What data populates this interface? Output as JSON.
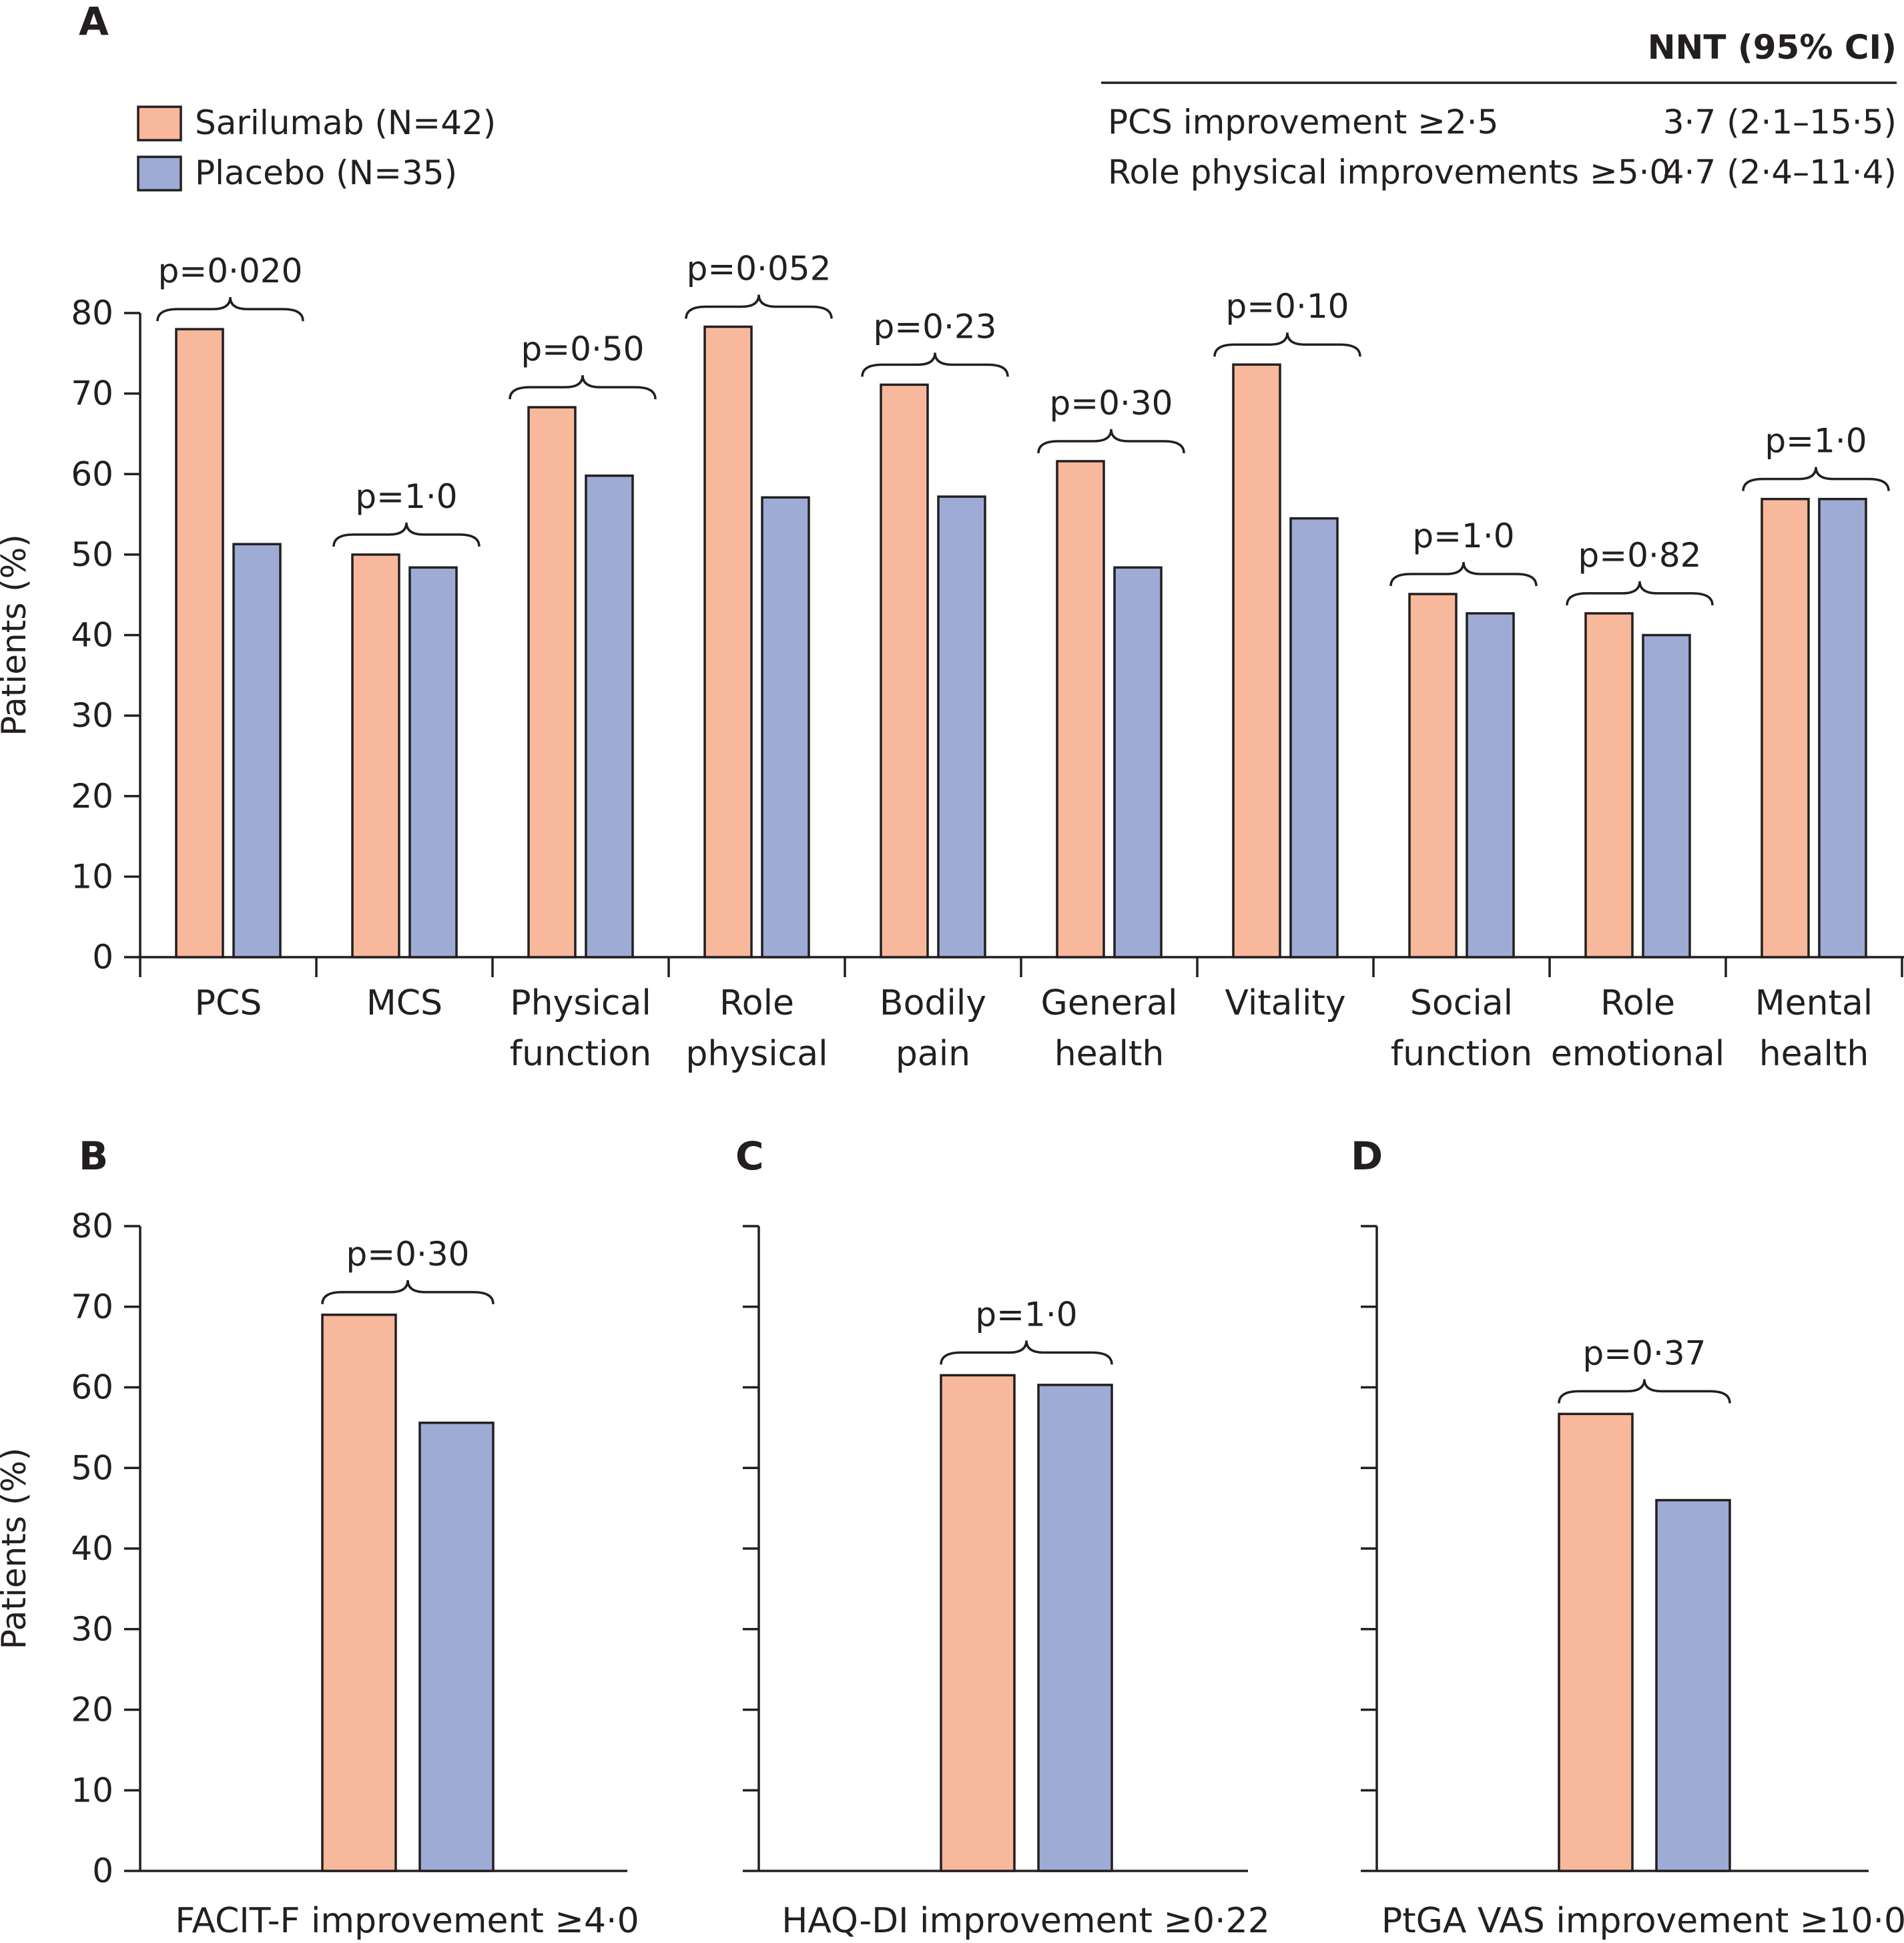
{
  "colors": {
    "sarilumab": "#f8b89c",
    "placebo": "#9eabd5",
    "ink": "#231f20"
  },
  "legend": [
    {
      "key": "sarilumab",
      "label": "Sarilumab (N=42)"
    },
    {
      "key": "placebo",
      "label": "Placebo (N=35)"
    }
  ],
  "nnt_table": {
    "header": "NNT (95% CI)",
    "rows": [
      {
        "label": "PCS improvement ≥2·5",
        "value": "3·7 (2·1–15·5)"
      },
      {
        "label": "Role physical improvements ≥5·0",
        "value": "4·7 (2·4–11·4)"
      }
    ]
  },
  "chart_data": [
    {
      "panel": "A",
      "type": "bar",
      "ylabel": "Patients (%)",
      "ylim": [
        0,
        80
      ],
      "yticks": [
        "0",
        "10",
        "20",
        "30",
        "40",
        "50",
        "60",
        "70",
        "80"
      ],
      "categories": [
        [
          "PCS"
        ],
        [
          "MCS"
        ],
        [
          "Physical",
          "function"
        ],
        [
          "Role",
          "physical"
        ],
        [
          "Bodily",
          "pain"
        ],
        [
          "General",
          "health"
        ],
        [
          "Vitality"
        ],
        [
          "Social",
          "function"
        ],
        [
          "Role",
          "emotional"
        ],
        [
          "Mental",
          "health"
        ]
      ],
      "series": [
        {
          "name": "Sarilumab (N=42)",
          "values": [
            78,
            50,
            68.3,
            78.3,
            71.1,
            61.6,
            73.6,
            45.1,
            42.7,
            56.9
          ]
        },
        {
          "name": "Placebo (N=35)",
          "values": [
            51.3,
            48.4,
            59.8,
            57.1,
            57.2,
            48.4,
            54.5,
            42.7,
            40,
            56.9
          ]
        }
      ],
      "p_values": [
        "p=0·020",
        "p=1·0",
        "p=0·50",
        "p=0·052",
        "p=0·23",
        "p=0·30",
        "p=0·10",
        "p=1·0",
        "p=0·82",
        "p=1·0"
      ]
    },
    {
      "panel": "B",
      "type": "bar",
      "ylabel": "Patients (%)",
      "ylim": [
        0,
        80
      ],
      "yticks": [
        "0",
        "10",
        "20",
        "30",
        "40",
        "50",
        "60",
        "70",
        "80"
      ],
      "xlabel": "FACIT-F improvement ≥4·0",
      "series": [
        {
          "name": "Sarilumab (N=42)",
          "values": [
            69
          ]
        },
        {
          "name": "Placebo (N=35)",
          "values": [
            55.6
          ]
        }
      ],
      "p_value": "p=0·30"
    },
    {
      "panel": "C",
      "type": "bar",
      "ylim": [
        0,
        80
      ],
      "xlabel": "HAQ-DI improvement ≥0·22",
      "series": [
        {
          "name": "Sarilumab (N=42)",
          "values": [
            61.5
          ]
        },
        {
          "name": "Placebo (N=35)",
          "values": [
            60.3
          ]
        }
      ],
      "p_value": "p=1·0"
    },
    {
      "panel": "D",
      "type": "bar",
      "ylim": [
        0,
        80
      ],
      "xlabel": "PtGA VAS improvement ≥10·0",
      "series": [
        {
          "name": "Sarilumab (N=42)",
          "values": [
            56.7
          ]
        },
        {
          "name": "Placebo (N=35)",
          "values": [
            46
          ]
        }
      ],
      "p_value": "p=0·37"
    }
  ]
}
